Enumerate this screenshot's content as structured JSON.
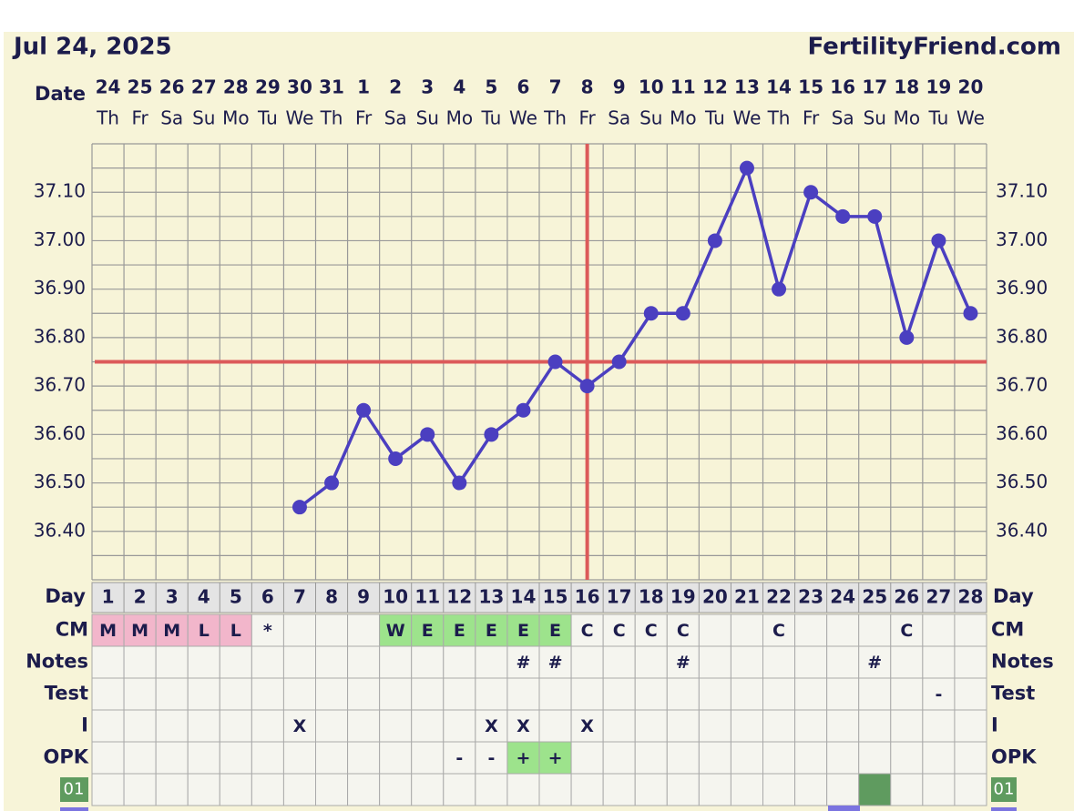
{
  "header": {
    "date": "Jul 24, 2025",
    "site": "FertilityFriend.com"
  },
  "chart_data": {
    "type": "line",
    "date_label": "Date",
    "categories": [
      "24",
      "25",
      "26",
      "27",
      "28",
      "29",
      "30",
      "31",
      "1",
      "2",
      "3",
      "4",
      "5",
      "6",
      "7",
      "8",
      "9",
      "10",
      "11",
      "12",
      "13",
      "14",
      "15",
      "16",
      "17",
      "18",
      "19",
      "20"
    ],
    "weekdays": [
      "Th",
      "Fr",
      "Sa",
      "Su",
      "Mo",
      "Tu",
      "We",
      "Th",
      "Fr",
      "Sa",
      "Su",
      "Mo",
      "Tu",
      "We",
      "Th",
      "Fr",
      "Sa",
      "Su",
      "Mo",
      "Tu",
      "We",
      "Th",
      "Fr",
      "Sa",
      "Su",
      "Mo",
      "Tu",
      "We"
    ],
    "values": [
      null,
      null,
      null,
      null,
      null,
      null,
      36.45,
      36.5,
      36.65,
      36.55,
      36.6,
      36.5,
      36.6,
      36.65,
      36.75,
      36.7,
      36.75,
      36.85,
      36.85,
      37.0,
      37.15,
      36.9,
      37.1,
      37.05,
      37.05,
      36.8,
      37.0,
      36.85
    ],
    "color": "#4b3fc0",
    "ylim": [
      36.3,
      37.2
    ],
    "yticks": [
      {
        "value": 36.4,
        "label": "36.40"
      },
      {
        "value": 36.5,
        "label": "36.50"
      },
      {
        "value": 36.6,
        "label": "36.60"
      },
      {
        "value": 36.7,
        "label": "36.70"
      },
      {
        "value": 36.8,
        "label": "36.80"
      },
      {
        "value": 36.9,
        "label": "36.90"
      },
      {
        "value": 37.0,
        "label": "37.00"
      },
      {
        "value": 37.1,
        "label": "37.10"
      }
    ],
    "minor_yticks": [
      36.35,
      36.45,
      36.55,
      36.65,
      36.75,
      36.85,
      36.95,
      37.05,
      37.15
    ],
    "coverline": 36.75,
    "ovulation_day": 16,
    "marker_color": "#dc5a5a"
  },
  "table": {
    "day_label": "Day",
    "days": [
      1,
      2,
      3,
      4,
      5,
      6,
      7,
      8,
      9,
      10,
      11,
      12,
      13,
      14,
      15,
      16,
      17,
      18,
      19,
      20,
      21,
      22,
      23,
      24,
      25,
      26,
      27,
      28
    ],
    "rows": [
      {
        "label": "CM",
        "cells": [
          "M",
          "M",
          "M",
          "L",
          "L",
          "*",
          null,
          null,
          null,
          "W",
          "E",
          "E",
          "E",
          "E",
          "E",
          "C",
          "C",
          "C",
          "C",
          null,
          null,
          "C",
          null,
          null,
          null,
          "C",
          null,
          null
        ],
        "fills": [
          "#f2b6cb",
          "#f2b6cb",
          "#f2b6cb",
          "#f2b6cb",
          "#f2b6cb",
          null,
          null,
          null,
          null,
          "#9de38c",
          "#9de38c",
          "#9de38c",
          "#9de38c",
          "#9de38c",
          "#9de38c",
          null,
          null,
          null,
          null,
          null,
          null,
          null,
          null,
          null,
          null,
          null,
          null,
          null
        ]
      },
      {
        "label": "Notes",
        "cells": [
          null,
          null,
          null,
          null,
          null,
          null,
          null,
          null,
          null,
          null,
          null,
          null,
          null,
          "#",
          "#",
          null,
          null,
          null,
          "#",
          null,
          null,
          null,
          null,
          null,
          "#",
          null,
          null,
          null
        ],
        "fills": [
          null,
          null,
          null,
          null,
          null,
          null,
          null,
          null,
          null,
          null,
          null,
          null,
          null,
          null,
          null,
          null,
          null,
          null,
          null,
          null,
          null,
          null,
          null,
          null,
          null,
          null,
          null,
          null
        ]
      },
      {
        "label": "Test",
        "cells": [
          null,
          null,
          null,
          null,
          null,
          null,
          null,
          null,
          null,
          null,
          null,
          null,
          null,
          null,
          null,
          null,
          null,
          null,
          null,
          null,
          null,
          null,
          null,
          null,
          null,
          null,
          "-",
          null
        ],
        "fills": [
          null,
          null,
          null,
          null,
          null,
          null,
          null,
          null,
          null,
          null,
          null,
          null,
          null,
          null,
          null,
          null,
          null,
          null,
          null,
          null,
          null,
          null,
          null,
          null,
          null,
          null,
          null,
          null
        ]
      },
      {
        "label": "I",
        "cells": [
          null,
          null,
          null,
          null,
          null,
          null,
          "X",
          null,
          null,
          null,
          null,
          null,
          "X",
          "X",
          null,
          "X",
          null,
          null,
          null,
          null,
          null,
          null,
          null,
          null,
          null,
          null,
          null,
          null
        ],
        "fills": [
          null,
          null,
          null,
          null,
          null,
          null,
          null,
          null,
          null,
          null,
          null,
          null,
          null,
          null,
          null,
          null,
          null,
          null,
          null,
          null,
          null,
          null,
          null,
          null,
          null,
          null,
          null,
          null
        ]
      },
      {
        "label": "OPK",
        "cells": [
          null,
          null,
          null,
          null,
          null,
          null,
          null,
          null,
          null,
          null,
          null,
          "-",
          "-",
          "+",
          "+",
          null,
          null,
          null,
          null,
          null,
          null,
          null,
          null,
          null,
          null,
          null,
          null,
          null
        ],
        "fills": [
          null,
          null,
          null,
          null,
          null,
          null,
          null,
          null,
          null,
          null,
          null,
          null,
          null,
          "#9de38c",
          "#9de38c",
          null,
          null,
          null,
          null,
          null,
          null,
          null,
          null,
          null,
          null,
          null,
          null,
          null
        ]
      },
      {
        "label": "01",
        "label_fill": "#5f9b5f",
        "cells": [
          null,
          null,
          null,
          null,
          null,
          null,
          null,
          null,
          null,
          null,
          null,
          null,
          null,
          null,
          null,
          null,
          null,
          null,
          null,
          null,
          null,
          null,
          null,
          null,
          null,
          null,
          null,
          null
        ],
        "fills": [
          null,
          null,
          null,
          null,
          null,
          null,
          null,
          null,
          null,
          null,
          null,
          null,
          null,
          null,
          null,
          null,
          null,
          null,
          null,
          null,
          null,
          null,
          null,
          null,
          "#5f9b5f",
          null,
          null,
          null
        ]
      }
    ]
  }
}
